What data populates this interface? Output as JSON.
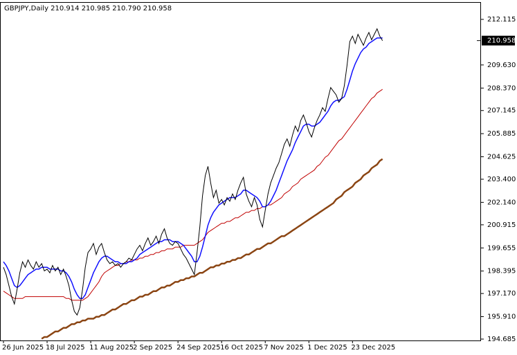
{
  "chart_data": {
    "type": "line",
    "title": "GBPJPY,Daily  210.914 210.985 210.790 210.958",
    "last_price": 210.958,
    "grid": false,
    "ylim": [
      194.61,
      213.02
    ],
    "yticks": [
      194.685,
      {
        "value": 195.91,
        "label": "195.910"
      },
      {
        "value": 197.17,
        "label": "197.170"
      },
      198.395,
      199.655,
      {
        "value": 200.915,
        "label": "200.915"
      },
      {
        "value": 202.14,
        "label": "202.140"
      },
      {
        "value": 203.4,
        "label": "203.400"
      },
      204.625,
      205.885,
      207.145,
      {
        "value": 208.37,
        "label": "208.370"
      },
      {
        "value": 209.63,
        "label": "209.630"
      },
      212.115
    ],
    "categories": [
      "26 Jun 2025",
      null,
      null,
      null,
      null,
      null,
      null,
      null,
      null,
      null,
      null,
      null,
      null,
      null,
      null,
      null,
      "18 Jul 2025",
      null,
      null,
      null,
      null,
      null,
      null,
      null,
      null,
      null,
      null,
      null,
      null,
      null,
      null,
      null,
      "11 Aug 2025",
      null,
      null,
      null,
      null,
      null,
      null,
      null,
      null,
      null,
      null,
      null,
      null,
      null,
      null,
      null,
      "2 Sep 2025",
      null,
      null,
      null,
      null,
      null,
      null,
      null,
      null,
      null,
      null,
      null,
      null,
      null,
      null,
      null,
      "24 Sep 2025",
      null,
      null,
      null,
      null,
      null,
      null,
      null,
      null,
      null,
      null,
      null,
      null,
      null,
      null,
      null,
      "16 Oct 2025",
      null,
      null,
      null,
      null,
      null,
      null,
      null,
      null,
      null,
      null,
      null,
      null,
      null,
      null,
      null,
      "7 Nov 2025",
      null,
      null,
      null,
      null,
      null,
      null,
      null,
      null,
      null,
      null,
      null,
      null,
      null,
      null,
      null,
      "1 Dec 2025",
      null,
      null,
      null,
      null,
      null,
      null,
      null,
      null,
      null,
      null,
      null,
      null,
      null,
      null,
      null,
      "23 Dec 2025",
      null,
      null,
      null,
      null,
      null,
      null,
      null,
      null,
      null,
      null,
      null
    ],
    "series": [
      {
        "color": "#8b4513",
        "width": 2.5,
        "values": [
          null,
          null,
          null,
          null,
          null,
          null,
          null,
          null,
          null,
          null,
          null,
          null,
          null,
          null,
          194.7,
          194.8,
          194.8,
          194.9,
          195.0,
          195.1,
          195.1,
          195.2,
          195.3,
          195.3,
          195.4,
          195.5,
          195.5,
          195.6,
          195.6,
          195.7,
          195.7,
          195.8,
          195.8,
          195.8,
          195.9,
          195.9,
          196.0,
          196.0,
          196.1,
          196.2,
          196.3,
          196.3,
          196.4,
          196.5,
          196.6,
          196.6,
          196.7,
          196.8,
          196.8,
          196.9,
          197.0,
          197.0,
          197.1,
          197.1,
          197.2,
          197.3,
          197.3,
          197.4,
          197.5,
          197.5,
          197.6,
          197.6,
          197.7,
          197.8,
          197.8,
          197.9,
          197.9,
          198.0,
          198.0,
          198.1,
          198.1,
          198.2,
          198.3,
          198.3,
          198.4,
          198.5,
          198.6,
          198.6,
          198.7,
          198.7,
          198.8,
          198.8,
          198.9,
          198.9,
          199.0,
          199.0,
          199.1,
          199.1,
          199.2,
          199.3,
          199.3,
          199.4,
          199.5,
          199.6,
          199.6,
          199.7,
          199.8,
          199.9,
          199.9,
          200.0,
          200.1,
          200.2,
          200.3,
          200.3,
          200.4,
          200.5,
          200.6,
          200.7,
          200.8,
          200.9,
          201.0,
          201.1,
          201.2,
          201.3,
          201.4,
          201.5,
          201.6,
          201.7,
          201.8,
          201.9,
          202.0,
          202.1,
          202.3,
          202.4,
          202.5,
          202.7,
          202.8,
          202.9,
          203.0,
          203.2,
          203.3,
          203.4,
          203.6,
          203.7,
          203.8,
          204.0,
          204.1,
          204.2,
          204.4,
          204.5
        ]
      },
      {
        "color": "#c00000",
        "width": 1,
        "values": [
          197.3,
          197.2,
          197.1,
          197.0,
          196.9,
          196.9,
          196.9,
          196.9,
          197.0,
          197.0,
          197.0,
          197.0,
          197.0,
          197.0,
          197.0,
          197.0,
          197.0,
          197.0,
          197.0,
          197.0,
          197.0,
          197.0,
          197.0,
          196.9,
          196.9,
          196.8,
          196.8,
          196.8,
          196.8,
          196.8,
          196.9,
          197.0,
          197.2,
          197.4,
          197.6,
          197.8,
          198.1,
          198.3,
          198.4,
          198.5,
          198.6,
          198.7,
          198.7,
          198.8,
          198.8,
          198.9,
          198.9,
          199.0,
          199.0,
          199.0,
          199.1,
          199.1,
          199.2,
          199.2,
          199.3,
          199.3,
          199.4,
          199.4,
          199.5,
          199.5,
          199.6,
          199.6,
          199.6,
          199.7,
          199.7,
          199.7,
          199.8,
          199.8,
          199.8,
          199.8,
          199.8,
          199.9,
          200.0,
          200.1,
          200.3,
          200.5,
          200.6,
          200.7,
          200.8,
          200.9,
          201.0,
          201.0,
          201.1,
          201.1,
          201.2,
          201.3,
          201.3,
          201.4,
          201.5,
          201.6,
          201.6,
          201.7,
          201.7,
          201.8,
          201.8,
          201.9,
          201.9,
          202.0,
          202.0,
          202.1,
          202.2,
          202.3,
          202.4,
          202.6,
          202.7,
          202.8,
          203.0,
          203.1,
          203.2,
          203.4,
          203.5,
          203.6,
          203.7,
          203.8,
          203.9,
          204.1,
          204.2,
          204.4,
          204.6,
          204.7,
          204.9,
          205.1,
          205.3,
          205.5,
          205.6,
          205.8,
          206.0,
          206.2,
          206.4,
          206.6,
          206.8,
          207.0,
          207.2,
          207.4,
          207.6,
          207.8,
          207.9,
          208.1,
          208.2,
          208.3
        ]
      },
      {
        "color": "#1010ff",
        "width": 1.5,
        "values": [
          198.9,
          198.7,
          198.4,
          198.0,
          197.6,
          197.5,
          197.6,
          197.8,
          198.0,
          198.2,
          198.3,
          198.4,
          198.5,
          198.5,
          198.6,
          198.6,
          198.6,
          198.5,
          198.5,
          198.5,
          198.5,
          198.4,
          198.4,
          198.3,
          198.1,
          197.8,
          197.4,
          197.1,
          196.9,
          196.9,
          197.1,
          197.5,
          197.9,
          198.3,
          198.6,
          198.9,
          199.1,
          199.2,
          199.2,
          199.1,
          199.0,
          198.9,
          198.9,
          198.8,
          198.8,
          198.8,
          198.9,
          198.9,
          199.0,
          199.1,
          199.3,
          199.4,
          199.5,
          199.6,
          199.7,
          199.8,
          199.9,
          200.0,
          200.0,
          200.1,
          200.1,
          200.1,
          200.0,
          200.0,
          200.0,
          199.9,
          199.8,
          199.6,
          199.4,
          199.2,
          198.9,
          198.9,
          199.2,
          199.7,
          200.3,
          200.9,
          201.3,
          201.6,
          201.8,
          202.0,
          202.1,
          202.2,
          202.3,
          202.4,
          202.4,
          202.4,
          202.5,
          202.6,
          202.8,
          202.8,
          202.7,
          202.6,
          202.5,
          202.4,
          202.2,
          201.9,
          201.9,
          202.0,
          202.2,
          202.5,
          202.8,
          203.2,
          203.6,
          204.0,
          204.4,
          204.7,
          205.0,
          205.4,
          205.7,
          206.0,
          206.3,
          206.4,
          206.4,
          206.3,
          206.3,
          206.4,
          206.5,
          206.7,
          206.9,
          207.1,
          207.4,
          207.6,
          207.7,
          207.7,
          207.8,
          207.9,
          208.3,
          208.8,
          209.3,
          209.7,
          210.0,
          210.3,
          210.5,
          210.6,
          210.8,
          210.9,
          211.0,
          211.1,
          211.1,
          211.1
        ]
      },
      {
        "color": "#000000",
        "width": 1,
        "values": [
          198.6,
          198.2,
          197.6,
          197.0,
          196.6,
          197.4,
          198.3,
          198.9,
          198.6,
          199.0,
          198.7,
          198.5,
          198.9,
          198.6,
          198.8,
          198.4,
          198.5,
          198.3,
          198.7,
          198.4,
          198.6,
          198.2,
          198.5,
          198.1,
          197.6,
          196.8,
          196.2,
          196.0,
          196.4,
          197.4,
          198.6,
          199.4,
          199.6,
          199.9,
          199.3,
          199.7,
          199.9,
          199.4,
          199.0,
          198.8,
          198.9,
          198.7,
          198.8,
          198.6,
          198.8,
          198.9,
          199.1,
          199.0,
          199.3,
          199.6,
          199.8,
          199.5,
          199.9,
          200.2,
          199.8,
          200.0,
          200.3,
          199.9,
          200.4,
          200.7,
          200.2,
          199.9,
          199.8,
          200.0,
          199.9,
          199.6,
          199.3,
          199.1,
          198.8,
          198.5,
          198.2,
          199.4,
          200.8,
          202.5,
          203.6,
          204.1,
          203.2,
          202.4,
          202.8,
          202.1,
          202.3,
          202.0,
          202.4,
          202.2,
          202.6,
          202.3,
          202.8,
          203.2,
          203.5,
          202.6,
          202.2,
          201.9,
          202.4,
          202.0,
          201.2,
          200.8,
          201.7,
          202.6,
          203.2,
          203.6,
          204.0,
          204.3,
          204.8,
          205.3,
          205.6,
          205.2,
          205.8,
          206.3,
          206.0,
          206.6,
          206.9,
          206.5,
          206.0,
          205.7,
          206.2,
          206.6,
          206.9,
          207.3,
          207.1,
          207.8,
          208.4,
          208.2,
          208.0,
          207.6,
          207.8,
          208.5,
          209.6,
          210.9,
          211.2,
          210.8,
          211.3,
          211.0,
          210.7,
          211.1,
          211.4,
          211.0,
          211.3,
          211.6,
          211.2,
          210.958
        ]
      }
    ]
  }
}
